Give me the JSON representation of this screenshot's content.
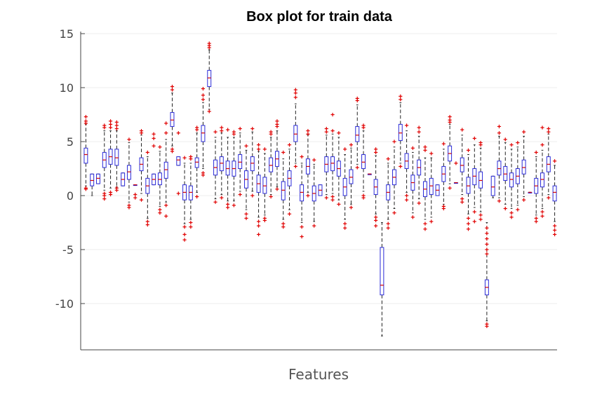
{
  "chart_data": {
    "type": "box",
    "title": "Box plot for train data",
    "xlabel": "Features",
    "ylabel": "",
    "ylim": [
      -14.4,
      15.3
    ],
    "yticks": [
      15,
      10,
      5,
      0,
      -5,
      -10
    ],
    "grid": true,
    "colors": {
      "box": "#2b2bd8",
      "median": "#d40000",
      "outlier": "#e00000",
      "whisker": "#222222"
    },
    "boxes": [
      {
        "q1": 3.0,
        "med": 3.8,
        "q3": 4.4,
        "lw": 0.9,
        "uw": 6.6,
        "outliers": [
          7.3,
          6.9,
          6.7,
          0.7,
          0.6
        ]
      },
      {
        "q1": 0.9,
        "med": 1.4,
        "q3": 2.0,
        "lw": 0.0,
        "uw": 2.0,
        "outliers": []
      },
      {
        "q1": 1.1,
        "med": 1.6,
        "q3": 2.0,
        "lw": 1.1,
        "uw": 2.0,
        "outliers": []
      },
      {
        "q1": 2.6,
        "med": 3.3,
        "q3": 4.0,
        "lw": 0.5,
        "uw": 6.0,
        "outliers": [
          6.5,
          6.3,
          0.2,
          0.0,
          -0.3
        ]
      },
      {
        "q1": 2.9,
        "med": 3.6,
        "q3": 4.3,
        "lw": 0.7,
        "uw": 6.0,
        "outliers": [
          6.9,
          6.6,
          6.3,
          0.3,
          0.1
        ]
      },
      {
        "q1": 2.8,
        "med": 3.5,
        "q3": 4.3,
        "lw": 0.8,
        "uw": 6.0,
        "outliers": [
          6.8,
          6.5,
          6.2,
          0.7,
          0.5
        ]
      },
      {
        "q1": 0.9,
        "med": 1.5,
        "q3": 2.1,
        "lw": 0.9,
        "uw": 2.1,
        "outliers": []
      },
      {
        "q1": 1.5,
        "med": 2.2,
        "q3": 2.8,
        "lw": -0.6,
        "uw": 4.9,
        "outliers": [
          5.2,
          -0.9,
          -1.1
        ]
      },
      {
        "q1": 1.0,
        "med": 1.0,
        "q3": 1.0,
        "lw": 1.0,
        "uw": 1.0,
        "outliers": [
          0.1,
          -0.2
        ]
      },
      {
        "q1": 2.3,
        "med": 2.9,
        "q3": 3.5,
        "lw": 0.2,
        "uw": 5.6,
        "outliers": [
          6.0,
          5.8,
          -0.4
        ]
      },
      {
        "q1": 0.2,
        "med": 0.9,
        "q3": 1.6,
        "lw": -2.1,
        "uw": 3.6,
        "outliers": [
          4.0,
          -2.4,
          -2.7
        ]
      },
      {
        "q1": 1.0,
        "med": 1.5,
        "q3": 2.0,
        "lw": 1.0,
        "uw": 2.0,
        "outliers": [
          5.7,
          5.3,
          4.6
        ]
      },
      {
        "q1": 1.0,
        "med": 1.5,
        "q3": 2.1,
        "lw": -1.0,
        "uw": 4.1,
        "outliers": [
          4.5,
          -1.3,
          -1.6
        ]
      },
      {
        "q1": 1.6,
        "med": 2.4,
        "q3": 3.1,
        "lw": -0.6,
        "uw": 5.2,
        "outliers": [
          5.8,
          6.7,
          -0.9,
          -1.9
        ]
      },
      {
        "q1": 6.4,
        "med": 7.0,
        "q3": 7.7,
        "lw": 4.6,
        "uw": 9.5,
        "outliers": [
          10.1,
          9.8,
          4.3,
          4.1
        ]
      },
      {
        "q1": 2.8,
        "med": 3.3,
        "q3": 3.6,
        "lw": 2.8,
        "uw": 3.6,
        "outliers": [
          5.8,
          0.2
        ]
      },
      {
        "q1": -0.4,
        "med": 0.3,
        "q3": 1.0,
        "lw": -2.6,
        "uw": 3.0,
        "outliers": [
          3.5,
          -2.9,
          -3.6,
          -4.1
        ]
      },
      {
        "q1": -0.4,
        "med": 0.3,
        "q3": 0.9,
        "lw": -2.2,
        "uw": 3.0,
        "outliers": [
          3.6,
          3.4,
          -2.5,
          -2.9
        ]
      },
      {
        "q1": 2.6,
        "med": 3.1,
        "q3": 3.5,
        "lw": 0.3,
        "uw": 5.8,
        "outliers": [
          6.3,
          6.1,
          -0.1
        ]
      },
      {
        "q1": 5.0,
        "med": 5.8,
        "q3": 6.5,
        "lw": 2.5,
        "uw": 8.6,
        "outliers": [
          9.9,
          9.3,
          8.9,
          2.1,
          1.9
        ]
      },
      {
        "q1": 10.1,
        "med": 10.9,
        "q3": 11.6,
        "lw": 8.0,
        "uw": 13.5,
        "outliers": [
          14.1,
          13.9,
          13.7,
          7.8
        ]
      },
      {
        "q1": 1.9,
        "med": 2.6,
        "q3": 3.3,
        "lw": -0.3,
        "uw": 5.4,
        "outliers": [
          5.9,
          -0.6
        ]
      },
      {
        "q1": 2.3,
        "med": 3.0,
        "q3": 3.6,
        "lw": 0.1,
        "uw": 5.8,
        "outliers": [
          6.3,
          6.0,
          -0.2
        ]
      },
      {
        "q1": 1.9,
        "med": 2.5,
        "q3": 3.2,
        "lw": -0.5,
        "uw": 5.4,
        "outliers": [
          6.1,
          -0.8,
          -1.1
        ]
      },
      {
        "q1": 1.8,
        "med": 2.5,
        "q3": 3.2,
        "lw": -0.5,
        "uw": 5.4,
        "outliers": [
          5.9,
          5.7,
          -0.9
        ]
      },
      {
        "q1": 2.5,
        "med": 3.1,
        "q3": 3.8,
        "lw": 0.4,
        "uw": 5.8,
        "outliers": [
          6.2,
          0.1
        ]
      },
      {
        "q1": 0.7,
        "med": 1.5,
        "q3": 2.3,
        "lw": -1.3,
        "uw": 4.2,
        "outliers": [
          4.6,
          -1.7,
          -2.1
        ]
      },
      {
        "q1": 2.3,
        "med": 3.0,
        "q3": 3.6,
        "lw": 0.4,
        "uw": 5.9,
        "outliers": [
          6.2,
          0.0
        ]
      },
      {
        "q1": 0.3,
        "med": 1.1,
        "q3": 1.9,
        "lw": -2.0,
        "uw": 4.1,
        "outliers": [
          4.7,
          4.3,
          -2.4,
          -2.8,
          -3.6
        ]
      },
      {
        "q1": 0.2,
        "med": 0.9,
        "q3": 1.7,
        "lw": -1.8,
        "uw": 3.9,
        "outliers": [
          4.3,
          -2.1,
          -2.3
        ]
      },
      {
        "q1": 2.2,
        "med": 2.8,
        "q3": 3.5,
        "lw": 0.1,
        "uw": 5.4,
        "outliers": [
          5.9,
          5.7,
          -0.1
        ]
      },
      {
        "q1": 2.7,
        "med": 3.4,
        "q3": 4.1,
        "lw": 0.8,
        "uw": 6.0,
        "outliers": [
          6.9,
          6.6,
          6.4,
          0.6
        ]
      },
      {
        "q1": -0.4,
        "med": 0.5,
        "q3": 1.3,
        "lw": -2.2,
        "uw": 3.4,
        "outliers": [
          4.0,
          -2.6,
          -2.9
        ]
      },
      {
        "q1": 0.9,
        "med": 1.6,
        "q3": 2.3,
        "lw": -1.3,
        "uw": 4.3,
        "outliers": [
          4.7,
          -1.7
        ]
      },
      {
        "q1": 5.0,
        "med": 5.7,
        "q3": 6.5,
        "lw": 3.0,
        "uw": 8.5,
        "outliers": [
          9.8,
          9.5,
          9.1,
          2.7
        ]
      },
      {
        "q1": -0.5,
        "med": 0.3,
        "q3": 1.0,
        "lw": -2.5,
        "uw": 3.0,
        "outliers": [
          3.6,
          -2.9,
          -3.8
        ]
      },
      {
        "q1": 2.0,
        "med": 2.7,
        "q3": 3.4,
        "lw": 0.3,
        "uw": 5.6,
        "outliers": [
          6.0,
          5.7,
          0.0
        ]
      },
      {
        "q1": -0.5,
        "med": 0.2,
        "q3": 0.9,
        "lw": -2.4,
        "uw": 2.9,
        "outliers": [
          3.3,
          -2.8
        ]
      },
      {
        "q1": 0.0,
        "med": 0.5,
        "q3": 1.0,
        "lw": 0.0,
        "uw": 1.0,
        "outliers": []
      },
      {
        "q1": 2.2,
        "med": 2.9,
        "q3": 3.6,
        "lw": 0.1,
        "uw": 5.6,
        "outliers": [
          6.2,
          5.9,
          -0.2
        ]
      },
      {
        "q1": 2.3,
        "med": 3.0,
        "q3": 3.6,
        "lw": 0.2,
        "uw": 5.7,
        "outliers": [
          7.5,
          6.0,
          -0.1,
          -0.4
        ]
      },
      {
        "q1": 1.8,
        "med": 2.5,
        "q3": 3.2,
        "lw": -0.4,
        "uw": 5.4,
        "outliers": [
          5.8,
          -0.8
        ]
      },
      {
        "q1": 0.0,
        "med": 0.8,
        "q3": 1.6,
        "lw": -2.2,
        "uw": 3.8,
        "outliers": [
          4.3,
          -2.6,
          -3.0
        ]
      },
      {
        "q1": 1.1,
        "med": 1.7,
        "q3": 2.4,
        "lw": -0.8,
        "uw": 4.4,
        "outliers": [
          4.7,
          -1.1
        ]
      },
      {
        "q1": 5.0,
        "med": 5.6,
        "q3": 6.4,
        "lw": 2.9,
        "uw": 8.4,
        "outliers": [
          9.0,
          8.8,
          2.6
        ]
      },
      {
        "q1": 2.5,
        "med": 3.1,
        "q3": 3.8,
        "lw": 0.4,
        "uw": 6.0,
        "outliers": [
          6.5,
          6.3,
          0.0,
          -0.2
        ]
      },
      {
        "q1": 2.0,
        "med": 2.0,
        "q3": 2.0,
        "lw": 2.0,
        "uw": 2.0,
        "outliers": []
      },
      {
        "q1": 0.1,
        "med": 0.8,
        "q3": 1.5,
        "lw": -1.7,
        "uw": 3.7,
        "outliers": [
          4.3,
          4.0,
          -2.0,
          -2.3,
          -2.8
        ]
      },
      {
        "q1": -9.2,
        "med": -8.3,
        "q3": -4.8,
        "lw": -13.0,
        "uw": -2.5,
        "outliers": []
      },
      {
        "q1": -0.4,
        "med": 0.3,
        "q3": 1.0,
        "lw": -2.2,
        "uw": 3.0,
        "outliers": [
          3.4,
          -2.6,
          -3.0
        ]
      },
      {
        "q1": 1.0,
        "med": 1.7,
        "q3": 2.4,
        "lw": -1.2,
        "uw": 4.5,
        "outliers": [
          5.0,
          -1.6
        ]
      },
      {
        "q1": 5.1,
        "med": 5.8,
        "q3": 6.6,
        "lw": 3.0,
        "uw": 8.6,
        "outliers": [
          9.2,
          8.9,
          2.7
        ]
      },
      {
        "q1": 2.5,
        "med": 3.2,
        "q3": 3.9,
        "lw": 0.3,
        "uw": 6.0,
        "outliers": [
          6.5,
          0.0,
          -0.4
        ]
      },
      {
        "q1": 0.5,
        "med": 1.2,
        "q3": 1.9,
        "lw": -1.6,
        "uw": 4.0,
        "outliers": [
          4.4,
          -2.0
        ]
      },
      {
        "q1": 1.9,
        "med": 2.6,
        "q3": 3.3,
        "lw": -0.3,
        "uw": 5.5,
        "outliers": [
          6.3,
          5.9,
          -0.7
        ]
      },
      {
        "q1": -0.1,
        "med": 0.6,
        "q3": 1.3,
        "lw": -2.2,
        "uw": 3.5,
        "outliers": [
          4.5,
          4.2,
          -2.6,
          -3.1
        ]
      },
      {
        "q1": 0.1,
        "med": 0.9,
        "q3": 1.6,
        "lw": -2.0,
        "uw": 3.5,
        "outliers": [
          3.9,
          -2.4
        ]
      },
      {
        "q1": 0.0,
        "med": 0.5,
        "q3": 1.0,
        "lw": 0.0,
        "uw": 1.0,
        "outliers": []
      },
      {
        "q1": 1.3,
        "med": 2.0,
        "q3": 2.7,
        "lw": -0.8,
        "uw": 4.3,
        "outliers": [
          4.8,
          -1.0,
          -1.2
        ]
      },
      {
        "q1": 3.2,
        "med": 3.9,
        "q3": 4.6,
        "lw": 1.1,
        "uw": 6.6,
        "outliers": [
          7.3,
          7.0,
          6.8,
          0.7
        ]
      },
      {
        "q1": 1.2,
        "med": 1.2,
        "q3": 1.2,
        "lw": 1.2,
        "uw": 1.2,
        "outliers": [
          3.0
        ]
      },
      {
        "q1": 2.2,
        "med": 2.8,
        "q3": 3.5,
        "lw": 0.1,
        "uw": 5.6,
        "outliers": [
          6.1,
          -0.3,
          -0.6
        ]
      },
      {
        "q1": 0.2,
        "med": 0.9,
        "q3": 1.7,
        "lw": -1.7,
        "uw": 3.8,
        "outliers": [
          4.2,
          -2.1,
          -2.6,
          -3.1
        ]
      },
      {
        "q1": 1.0,
        "med": 1.8,
        "q3": 2.5,
        "lw": -1.1,
        "uw": 4.7,
        "outliers": [
          5.3,
          -1.5,
          -2.4
        ]
      },
      {
        "q1": 0.7,
        "med": 1.4,
        "q3": 2.2,
        "lw": -1.5,
        "uw": 4.4,
        "outliers": [
          4.9,
          4.7,
          -1.8,
          -2.2
        ]
      },
      {
        "q1": -9.2,
        "med": -8.5,
        "q3": -7.8,
        "lw": -11.6,
        "uw": -2.5,
        "outliers": [
          -3.0,
          -3.5,
          -4.0,
          -4.5,
          -5.0,
          -5.4,
          -11.9,
          -12.1
        ]
      },
      {
        "q1": 0.0,
        "med": 0.8,
        "q3": 1.8,
        "lw": -0.2,
        "uw": 1.8,
        "outliers": []
      },
      {
        "q1": 1.9,
        "med": 2.5,
        "q3": 3.2,
        "lw": -0.2,
        "uw": 5.5,
        "outliers": [
          6.4,
          5.8,
          -0.5
        ]
      },
      {
        "q1": 1.4,
        "med": 2.0,
        "q3": 2.7,
        "lw": -0.8,
        "uw": 4.9,
        "outliers": [
          5.2,
          -1.2
        ]
      },
      {
        "q1": 0.8,
        "med": 1.5,
        "q3": 2.1,
        "lw": -1.2,
        "uw": 4.3,
        "outliers": [
          4.7,
          -1.6,
          -2.0
        ]
      },
      {
        "q1": 1.1,
        "med": 1.8,
        "q3": 2.5,
        "lw": -0.9,
        "uw": 4.5,
        "outliers": [
          4.9,
          -1.3
        ]
      },
      {
        "q1": 2.0,
        "med": 2.6,
        "q3": 3.3,
        "lw": -0.1,
        "uw": 5.5,
        "outliers": [
          5.9,
          -0.4
        ]
      },
      {
        "q1": 0.3,
        "med": 0.3,
        "q3": 0.3,
        "lw": 0.3,
        "uw": 0.3,
        "outliers": []
      },
      {
        "q1": 0.2,
        "med": 0.9,
        "q3": 1.6,
        "lw": -1.8,
        "uw": 3.6,
        "outliers": [
          4.0,
          -2.1,
          -2.4
        ]
      },
      {
        "q1": 0.8,
        "med": 1.5,
        "q3": 2.1,
        "lw": -1.2,
        "uw": 4.2,
        "outliers": [
          4.7,
          6.3,
          -1.5,
          -1.9
        ]
      },
      {
        "q1": 2.2,
        "med": 2.9,
        "q3": 3.6,
        "lw": 0.1,
        "uw": 5.7,
        "outliers": [
          6.2,
          5.9,
          -0.2
        ]
      },
      {
        "q1": -0.5,
        "med": 0.3,
        "q3": 0.9,
        "lw": -2.4,
        "uw": 2.8,
        "outliers": [
          3.2,
          -2.8,
          -3.2,
          -3.6
        ]
      }
    ]
  }
}
